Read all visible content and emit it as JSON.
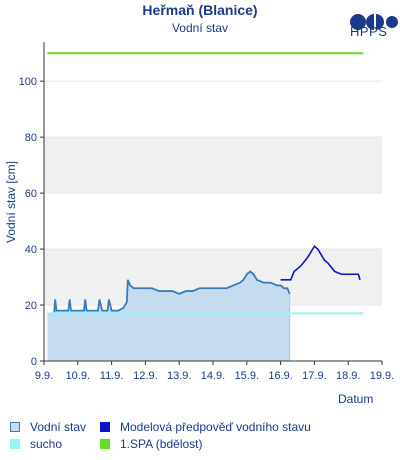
{
  "header": {
    "title": "Heřmaň (Blanice)",
    "subtitle": "Vodní stav",
    "logo_text": "HPPS"
  },
  "colors": {
    "observed_fill": "#c5dcf0",
    "observed_line": "#3a7ab8",
    "forecast_line": "#0b14c8",
    "sucho": "#99f5f5",
    "spa": "#66dd22",
    "band": "#f0f0f0",
    "axis_text": "#1a3a8a"
  },
  "legend": [
    {
      "label": "Vodní stav",
      "swatch": "observed"
    },
    {
      "label": "Modelová předpověď vodního stavu",
      "swatch": "forecast"
    },
    {
      "label": "sucho",
      "swatch": "sucho"
    },
    {
      "label": "1.SPA (bdělost)",
      "swatch": "spa"
    }
  ],
  "chart_data": {
    "type": "area",
    "xlabel": "Datum",
    "ylabel": "Vodní stav [cm]",
    "x_ticks": [
      "9.9.",
      "10.9.",
      "11.9.",
      "12.9.",
      "13.9.",
      "14.9.",
      "15.9.",
      "16.9.",
      "17.9.",
      "18.9.",
      "19.9."
    ],
    "y_ticks": [
      0,
      20,
      40,
      60,
      80,
      100
    ],
    "ylim": [
      0,
      114
    ],
    "xlim_days": [
      9,
      19
    ],
    "shaded_bands": [
      [
        20,
        40
      ],
      [
        60,
        80
      ]
    ],
    "thresholds": [
      {
        "name": "1.SPA (bdělost)",
        "value": 110,
        "x_from_day": 9.1,
        "x_to_day": 18.45
      },
      {
        "name": "sucho",
        "value": 17,
        "x_from_day": 9.1,
        "x_to_day": 18.45
      }
    ],
    "series": [
      {
        "name": "Vodní stav",
        "x_day": [
          9.1,
          9.2,
          9.3,
          9.33,
          9.37,
          9.42,
          9.5,
          9.6,
          9.72,
          9.76,
          9.8,
          9.9,
          10.0,
          10.1,
          10.18,
          10.22,
          10.26,
          10.35,
          10.45,
          10.55,
          10.6,
          10.64,
          10.72,
          10.82,
          10.88,
          10.92,
          11.0,
          11.1,
          11.2,
          11.35,
          11.45,
          11.48,
          11.55,
          11.65,
          11.75,
          11.9,
          12.0,
          12.2,
          12.4,
          12.6,
          12.8,
          13.0,
          13.2,
          13.4,
          13.6,
          13.8,
          14.0,
          14.2,
          14.4,
          14.6,
          14.8,
          14.9,
          15.0,
          15.1,
          15.2,
          15.3,
          15.5,
          15.7,
          15.9,
          16.0,
          16.1,
          16.2,
          16.27
        ],
        "values": [
          17,
          17,
          17,
          22,
          18,
          18,
          18,
          18,
          18,
          22,
          18,
          18,
          18,
          18,
          18,
          22,
          18,
          18,
          18,
          18,
          18,
          22,
          18,
          18,
          18,
          22,
          18,
          18,
          18,
          19,
          21,
          29,
          27,
          26,
          26,
          26,
          26,
          26,
          25,
          25,
          25,
          24,
          25,
          25,
          26,
          26,
          26,
          26,
          26,
          27,
          28,
          29,
          31,
          32,
          31,
          29,
          28,
          28,
          27,
          27,
          26,
          26,
          24
        ]
      },
      {
        "name": "Modelová předpověď vodního stavu",
        "x_day": [
          16.0,
          16.2,
          16.3,
          16.4,
          16.6,
          16.8,
          17.0,
          17.1,
          17.2,
          17.3,
          17.4,
          17.6,
          17.8,
          18.0,
          18.2,
          18.3,
          18.35
        ],
        "values": [
          29,
          29,
          29,
          32,
          34,
          37,
          41,
          40,
          38,
          36,
          35,
          32,
          31,
          31,
          31,
          31,
          29
        ]
      }
    ]
  }
}
